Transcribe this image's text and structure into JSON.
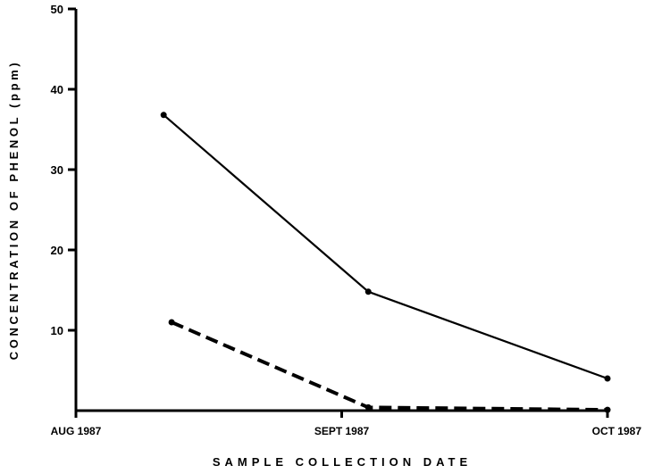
{
  "chart_data": {
    "type": "line",
    "title": "",
    "xlabel": "SAMPLE COLLECTION DATE",
    "ylabel": "CONCENTRATION OF PHENOL (ppm)",
    "x_ticks": [
      "AUG 1987",
      "SEPT 1987",
      "OCT 1987"
    ],
    "x_tick_positions": [
      0,
      1,
      2
    ],
    "xlim": [
      0,
      2
    ],
    "y_ticks": [
      10,
      20,
      30,
      40,
      50
    ],
    "ylim": [
      0,
      50
    ],
    "grid": false,
    "legend": "none",
    "series": [
      {
        "style": "solid",
        "color": "#000000",
        "points": [
          {
            "x": 0.33,
            "y": 36.8
          },
          {
            "x": 1.1,
            "y": 14.8
          },
          {
            "x": 2.0,
            "y": 4.0
          }
        ]
      },
      {
        "style": "dashed",
        "color": "#000000",
        "points": [
          {
            "x": 0.36,
            "y": 11.0
          },
          {
            "x": 1.1,
            "y": 0.4
          },
          {
            "x": 2.0,
            "y": 0.1
          }
        ]
      }
    ]
  }
}
